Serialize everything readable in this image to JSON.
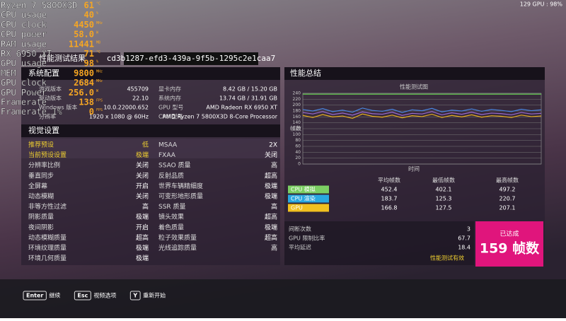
{
  "overlay": {
    "rows": [
      {
        "label": "Ryzen 7 5800X3D",
        "value": "61",
        "unit": "°C"
      },
      {
        "label": "CPU usage",
        "value": "40",
        "unit": "%"
      },
      {
        "label": "CPU clock",
        "value": "4450",
        "unit": "MHz"
      },
      {
        "label": "CPU  power",
        "value": "58.0",
        "unit": "W"
      },
      {
        "label": "RAM usage",
        "value": "11441",
        "unit": "MB"
      },
      {
        "label": "RX 6950 XT",
        "value": "71",
        "unit": "°C"
      },
      {
        "label": "GPU usage",
        "value": "98",
        "unit": "%"
      },
      {
        "label": "MEM",
        "value": "9800",
        "unit": "MHz"
      },
      {
        "label": "GPU clock",
        "value": "2684",
        "unit": "MHz"
      },
      {
        "label": "GPU Power",
        "value": "256.0",
        "unit": "W"
      },
      {
        "label": "Framerate",
        "value": "138",
        "unit": "FPS"
      },
      {
        "label": "Framerate 1%",
        "value": "0",
        "unit": "FPS"
      }
    ],
    "corner": "129 GPU : 98%"
  },
  "header": {
    "title": "性能测试结果",
    "id": "cd3b1287-efd3-439a-9f5b-1295c2e1caa7"
  },
  "system": {
    "title": "系统配置",
    "left": [
      [
        "游戏版本",
        "455709"
      ],
      [
        "驱动版本",
        "22.10"
      ],
      [
        "Windows 版本",
        "10.0.22000.652"
      ],
      [
        "分辨率",
        "1920 x 1080 @ 60Hz"
      ]
    ],
    "right": [
      [
        "显卡内存",
        "8.42 GB / 15.20 GB"
      ],
      [
        "系统内存",
        "13.74 GB / 31.91 GB"
      ],
      [
        "GPU 型号",
        "AMD Radeon RX 6950 XT"
      ],
      [
        "CPU 型号",
        "AMD Ryzen 7 5800X3D 8-Core Processor"
      ]
    ]
  },
  "visual": {
    "title": "视觉设置",
    "left": [
      [
        "推荐预设",
        "低"
      ],
      [
        "当前预设设置",
        "极端"
      ],
      [
        "分辨率比例",
        "关闭"
      ],
      [
        "垂直同步",
        "关闭"
      ],
      [
        "全屏幕",
        "开启"
      ],
      [
        "动态模糊",
        "关闭"
      ],
      [
        "非等方性过滤",
        "高"
      ],
      [
        "阴影质量",
        "极端"
      ],
      [
        "夜间阴影",
        "开启"
      ],
      [
        "动态模糊质量",
        "超高"
      ],
      [
        "环境纹理质量",
        "极端"
      ],
      [
        "环境几何质量",
        "极端"
      ]
    ],
    "right": [
      [
        "MSAA",
        "2X"
      ],
      [
        "FXAA",
        "关闭"
      ],
      [
        "SSAO 质量",
        "高"
      ],
      [
        "反射品质",
        "超高"
      ],
      [
        "世界车辆精细度",
        "极端"
      ],
      [
        "可变形地形质量",
        "极端"
      ],
      [
        "SSR 质量",
        "高"
      ],
      [
        "镜头效果",
        "超高"
      ],
      [
        "着色质量",
        "极端"
      ],
      [
        "粒子效果质量",
        "超高"
      ],
      [
        "光线追踪质量",
        "高"
      ]
    ]
  },
  "summary": {
    "title": "性能总结",
    "graph": {
      "title": "性能测试图",
      "ylabel": "帧数",
      "xlabel": "时间",
      "ylim": [
        0,
        240
      ],
      "yticks": [
        0,
        20,
        40,
        60,
        80,
        100,
        120,
        140,
        160,
        180,
        200,
        220,
        240
      ],
      "series": [
        {
          "color": "#5cc04a",
          "values": [
            237,
            237
          ]
        },
        {
          "color": "#4a86e0",
          "values": [
            185,
            180,
            188,
            178,
            183,
            176,
            190,
            182,
            179,
            186,
            175,
            184,
            181,
            189,
            177,
            183,
            180,
            187,
            179,
            185,
            182,
            178,
            186,
            181,
            184
          ]
        },
        {
          "color": "#9a6ad0",
          "values": [
            175,
            170,
            178,
            168,
            173,
            166,
            177,
            171,
            169,
            176,
            165,
            172,
            170,
            178,
            167,
            174,
            169,
            176,
            168,
            173,
            171,
            167,
            175,
            170,
            172
          ]
        },
        {
          "color": "#e8b020",
          "values": [
            165,
            158,
            168,
            160,
            163,
            155,
            170,
            162,
            159,
            166,
            157,
            164,
            161,
            169,
            158,
            165,
            160,
            167,
            159,
            164,
            162,
            158,
            166,
            161,
            163
          ]
        }
      ]
    },
    "columns": [
      "平均帧数",
      "最低帧数",
      "最高帧数"
    ],
    "rows": [
      {
        "name": "CPU 模拟",
        "color": "#7ccf63",
        "values": [
          452.4,
          402.1,
          497.2
        ]
      },
      {
        "name": "CPU 渲染",
        "color": "#29a8e0",
        "values": [
          183.7,
          125.3,
          220.7
        ]
      },
      {
        "name": "GPU",
        "color": "#f0c020",
        "values": [
          166.8,
          127.5,
          207.1
        ]
      }
    ],
    "stats": [
      [
        "间断次数",
        "3"
      ],
      [
        "GPU 限制比率",
        "67.7"
      ],
      [
        "平均延迟",
        "18.4"
      ]
    ],
    "valid": "性能测试有效",
    "badge": {
      "caption": "已达成",
      "text": "159 帧数"
    }
  },
  "footer": [
    {
      "key": "Enter",
      "label": "继续"
    },
    {
      "key": "Esc",
      "label": "视频选项"
    },
    {
      "key": "Y",
      "label": "重新开始"
    }
  ]
}
